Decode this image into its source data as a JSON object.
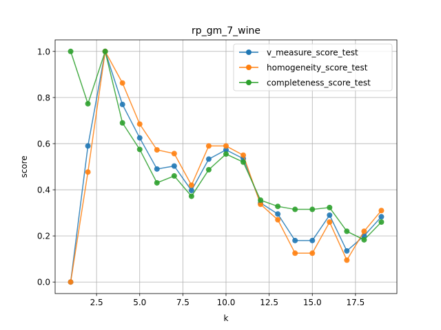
{
  "chart_data": {
    "type": "line",
    "title": "rp_gm_7_wine",
    "xlabel": "k",
    "ylabel": "score",
    "xlim": [
      0.1,
      19.9
    ],
    "ylim": [
      -0.05,
      1.05
    ],
    "xticks": [
      2.5,
      5.0,
      7.5,
      10.0,
      12.5,
      15.0,
      17.5
    ],
    "xtick_labels": [
      "2.5",
      "5.0",
      "7.5",
      "10.0",
      "12.5",
      "15.0",
      "17.5"
    ],
    "yticks": [
      0.0,
      0.2,
      0.4,
      0.6,
      0.8,
      1.0
    ],
    "ytick_labels": [
      "0.0",
      "0.2",
      "0.4",
      "0.6",
      "0.8",
      "1.0"
    ],
    "grid": true,
    "legend_position": "top-right",
    "x": [
      1,
      2,
      3,
      4,
      5,
      6,
      7,
      8,
      9,
      10,
      11,
      12,
      13,
      14,
      15,
      16,
      17,
      18,
      19
    ],
    "series": [
      {
        "name": "v_measure_score_test",
        "color": "#1f77b4",
        "values": [
          0.0,
          0.59,
          1.0,
          0.77,
          0.625,
          0.49,
          0.503,
          0.397,
          0.533,
          0.573,
          0.535,
          0.343,
          0.295,
          0.18,
          0.18,
          0.29,
          0.135,
          0.2,
          0.283
        ]
      },
      {
        "name": "homogeneity_score_test",
        "color": "#ff7f0e",
        "values": [
          0.0,
          0.477,
          1.0,
          0.863,
          0.685,
          0.573,
          0.557,
          0.42,
          0.59,
          0.59,
          0.55,
          0.337,
          0.27,
          0.125,
          0.125,
          0.26,
          0.095,
          0.22,
          0.31
        ]
      },
      {
        "name": "completeness_score_test",
        "color": "#2ca02c",
        "values": [
          1.0,
          0.773,
          1.0,
          0.69,
          0.575,
          0.43,
          0.46,
          0.372,
          0.487,
          0.555,
          0.52,
          0.355,
          0.328,
          0.315,
          0.315,
          0.323,
          0.22,
          0.183,
          0.26
        ]
      }
    ]
  }
}
